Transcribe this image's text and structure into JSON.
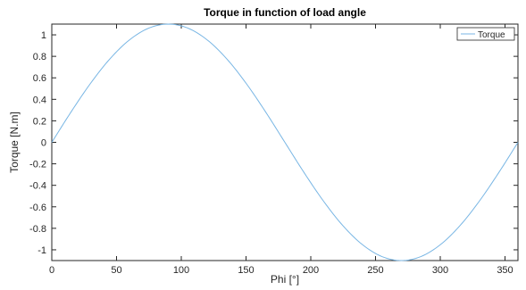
{
  "chart_data": {
    "type": "line",
    "title": "Torque in function of load angle",
    "xlabel": "Phi [°]",
    "ylabel": "Torque [N.m]",
    "xlim": [
      0,
      360
    ],
    "ylim": [
      -1.1,
      1.1
    ],
    "xticks": [
      "0",
      "50",
      "100",
      "150",
      "200",
      "250",
      "300",
      "350"
    ],
    "yticks": [
      "-1",
      "-0.8",
      "-0.6",
      "-0.4",
      "-0.2",
      "0",
      "0.2",
      "0.4",
      "0.6",
      "0.8",
      "1"
    ],
    "grid": false,
    "legend_position": "top-right",
    "series": [
      {
        "name": "Torque",
        "color": "#79b6e4",
        "x": [
          0,
          15,
          30,
          45,
          60,
          75,
          90,
          105,
          120,
          135,
          150,
          165,
          180,
          195,
          210,
          225,
          240,
          255,
          270,
          285,
          300,
          315,
          330,
          345,
          360
        ],
        "y": [
          0,
          0.285,
          0.55,
          0.778,
          0.953,
          1.063,
          1.1,
          1.063,
          0.953,
          0.778,
          0.55,
          0.285,
          0,
          -0.285,
          -0.55,
          -0.778,
          -0.953,
          -1.063,
          -1.1,
          -1.063,
          -0.953,
          -0.778,
          -0.55,
          -0.285,
          0
        ]
      }
    ]
  }
}
